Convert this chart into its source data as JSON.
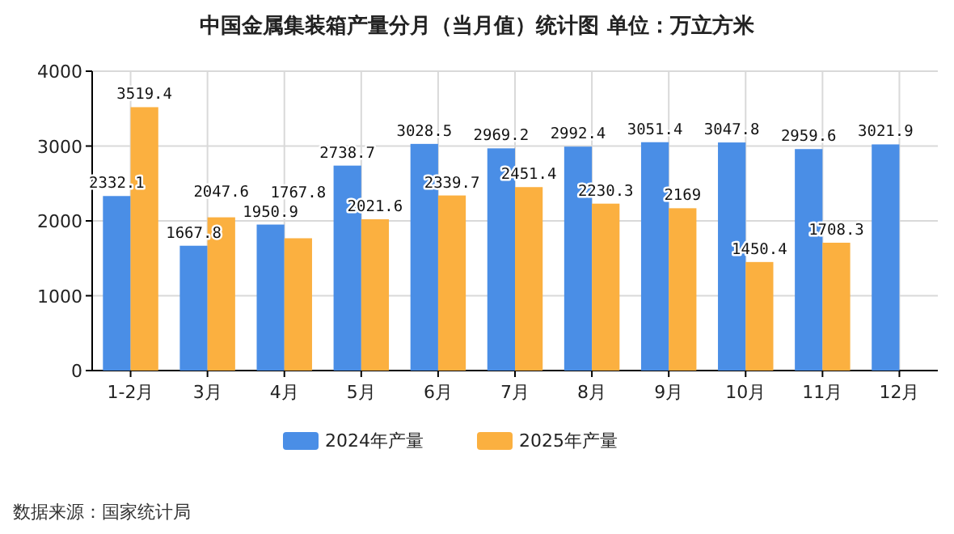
{
  "chart_data": {
    "type": "bar",
    "title": "中国金属集装箱产量分月（当月值）统计图  单位：万立方米",
    "categories": [
      "1-2月",
      "3月",
      "4月",
      "5月",
      "6月",
      "7月",
      "8月",
      "9月",
      "10月",
      "11月",
      "12月"
    ],
    "series": [
      {
        "name": "2024年产量",
        "color": "#4a8ee6",
        "values": [
          2332.1,
          1667.8,
          1950.9,
          2738.7,
          3028.5,
          2969.2,
          2992.4,
          3051.4,
          3047.8,
          2959.6,
          3021.9
        ]
      },
      {
        "name": "2025年产量",
        "color": "#fbb040",
        "values": [
          3519.4,
          2047.6,
          1767.8,
          2021.6,
          2339.7,
          2451.4,
          2230.3,
          2169,
          1450.4,
          1708.3,
          null
        ]
      }
    ],
    "ylim": [
      0,
      4000
    ],
    "yticks": [
      0,
      1000,
      2000,
      3000,
      4000
    ],
    "grid": true,
    "legend": "bottom",
    "data_labels": true,
    "annotations": [
      "数据来源：国家统计局"
    ]
  }
}
